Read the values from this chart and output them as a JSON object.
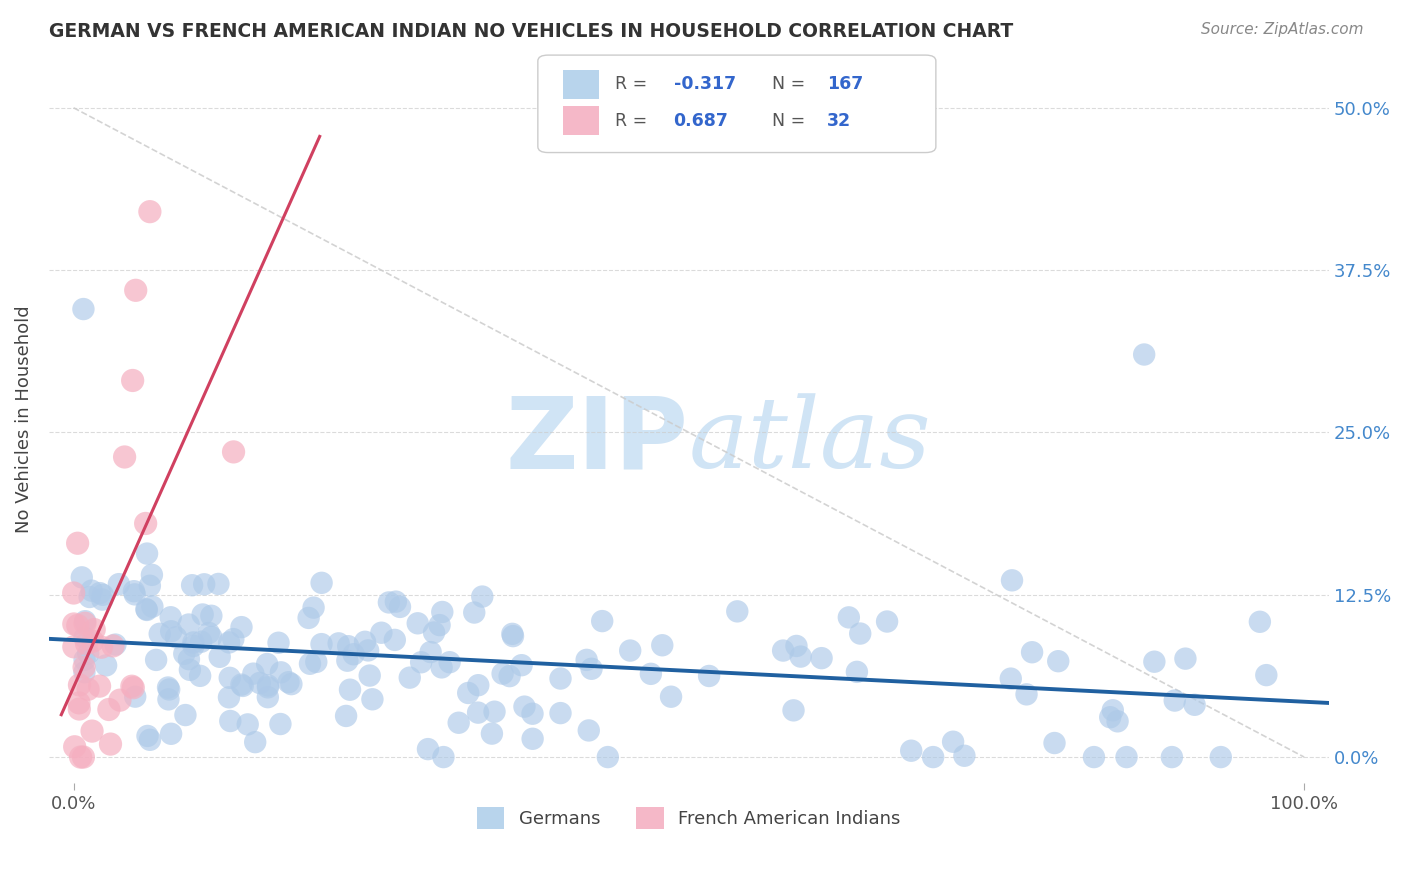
{
  "title": "GERMAN VS FRENCH AMERICAN INDIAN NO VEHICLES IN HOUSEHOLD CORRELATION CHART",
  "source": "Source: ZipAtlas.com",
  "ylabel": "No Vehicles in Household",
  "xlim": [
    -0.02,
    1.02
  ],
  "ylim": [
    -0.02,
    0.54
  ],
  "ytick_labels": [
    "0.0%",
    "12.5%",
    "25.0%",
    "37.5%",
    "50.0%"
  ],
  "ytick_values": [
    0.0,
    0.125,
    0.25,
    0.375,
    0.5
  ],
  "xtick_labels": [
    "0.0%",
    "100.0%"
  ],
  "xtick_values": [
    0.0,
    1.0
  ],
  "german_R": -0.317,
  "german_N": 167,
  "french_R": 0.687,
  "french_N": 32,
  "blue_scatter_color": "#adc9e8",
  "pink_scatter_color": "#f5afc0",
  "blue_line_color": "#2060a0",
  "pink_line_color": "#d04060",
  "diag_color": "#cccccc",
  "grid_color": "#cccccc",
  "watermark_color": "#d0e4f5",
  "background_color": "#ffffff",
  "legend_text_color": "#3366cc",
  "legend_label_color": "#555555",
  "title_color": "#333333",
  "source_color": "#888888",
  "axis_color": "#555555",
  "right_axis_color": "#4488cc"
}
